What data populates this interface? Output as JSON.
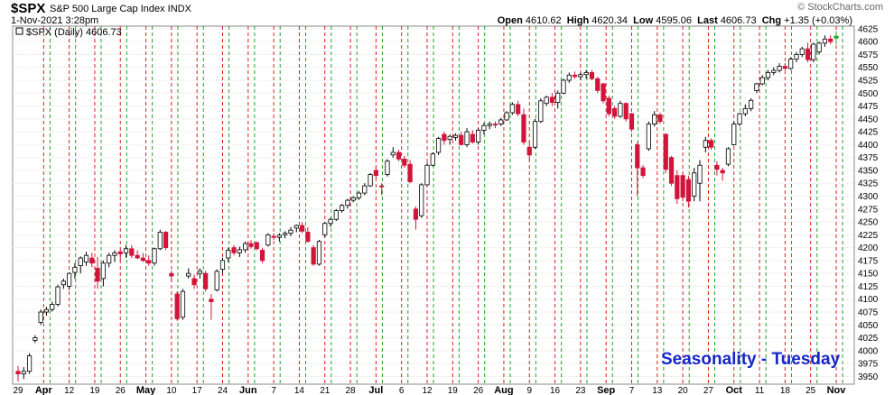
{
  "header": {
    "symbol": "$SPX",
    "description": "S&P 500 Large Cap Index  INDX",
    "datetime": "1-Nov-2021 3:28pm",
    "watermark": "© StockCharts.com",
    "open_label": "Open",
    "open_value": "4610.62",
    "high_label": "High",
    "high_value": "4620.34",
    "low_label": "Low",
    "low_value": "4595.06",
    "last_label": "Last",
    "last_value": "4606.73",
    "chg_label": "Chg",
    "chg_value": "+1.35 (+0.03%)"
  },
  "legend": {
    "text": "$SPX (Daily) 4606.73"
  },
  "annotation": {
    "text": "Seasonality - Tuesday"
  },
  "colors": {
    "up": "#ffffff",
    "down": "#d2143a",
    "tuesday_line": "#2aa02a",
    "month_line": "#d62020",
    "last_bar": "#22aa22",
    "annotation": "#1526c8"
  },
  "chart_data": {
    "type": "candlestick",
    "title": "$SPX (Daily) 4606.73",
    "ylim": [
      3935,
      4630
    ],
    "y_ticks": [
      3950,
      3975,
      4000,
      4025,
      4050,
      4075,
      4100,
      4125,
      4150,
      4175,
      4200,
      4225,
      4250,
      4275,
      4300,
      4325,
      4350,
      4375,
      4400,
      4425,
      4450,
      4475,
      4500,
      4525,
      4550,
      4575,
      4600,
      4625
    ],
    "x_tick_labels": [
      "29",
      "Apr",
      "12",
      "19",
      "26",
      "May",
      "10",
      "17",
      "24",
      "Jun",
      "7",
      "14",
      "21",
      "28",
      "Jul",
      "6",
      "12",
      "19",
      "26",
      "Aug",
      "9",
      "16",
      "23",
      "Sep",
      "7",
      "13",
      "20",
      "27",
      "Oct",
      "11",
      "18",
      "25",
      "Nov"
    ],
    "bold_labels": [
      "Apr",
      "May",
      "Jun",
      "Jul",
      "Aug",
      "Sep",
      "Oct",
      "Nov"
    ],
    "grid": true,
    "vertical_markers": "dashed red lines on first trading day of each week, dashed green lines on each Tuesday",
    "candles": [
      {
        "o": 3960,
        "h": 3970,
        "l": 3940,
        "c": 3955
      },
      {
        "o": 3955,
        "h": 3968,
        "l": 3945,
        "c": 3960
      },
      {
        "o": 3960,
        "h": 3995,
        "l": 3955,
        "c": 3990
      },
      {
        "o": 4020,
        "h": 4030,
        "l": 4015,
        "c": 4025
      },
      {
        "o": 4055,
        "h": 4080,
        "l": 4050,
        "c": 4075
      },
      {
        "o": 4075,
        "h": 4085,
        "l": 4068,
        "c": 4080
      },
      {
        "o": 4080,
        "h": 4095,
        "l": 4076,
        "c": 4090
      },
      {
        "o": 4090,
        "h": 4128,
        "l": 4086,
        "c": 4124
      },
      {
        "o": 4128,
        "h": 4140,
        "l": 4120,
        "c": 4135
      },
      {
        "o": 4125,
        "h": 4152,
        "l": 4118,
        "c": 4150
      },
      {
        "o": 4152,
        "h": 4170,
        "l": 4140,
        "c": 4162
      },
      {
        "o": 4165,
        "h": 4183,
        "l": 4150,
        "c": 4180
      },
      {
        "o": 4172,
        "h": 4192,
        "l": 4165,
        "c": 4185
      },
      {
        "o": 4180,
        "h": 4190,
        "l": 4162,
        "c": 4170
      },
      {
        "o": 4160,
        "h": 4182,
        "l": 4120,
        "c": 4135
      },
      {
        "o": 4140,
        "h": 4175,
        "l": 4125,
        "c": 4170
      },
      {
        "o": 4170,
        "h": 4190,
        "l": 4162,
        "c": 4185
      },
      {
        "o": 4185,
        "h": 4195,
        "l": 4172,
        "c": 4190
      },
      {
        "o": 4192,
        "h": 4198,
        "l": 4175,
        "c": 4188
      },
      {
        "o": 4190,
        "h": 4205,
        "l": 4180,
        "c": 4198
      },
      {
        "o": 4198,
        "h": 4205,
        "l": 4180,
        "c": 4185
      },
      {
        "o": 4185,
        "h": 4195,
        "l": 4178,
        "c": 4180
      },
      {
        "o": 4180,
        "h": 4190,
        "l": 4172,
        "c": 4175
      },
      {
        "o": 4175,
        "h": 4185,
        "l": 4165,
        "c": 4170
      },
      {
        "o": 4170,
        "h": 4200,
        "l": 4165,
        "c": 4198
      },
      {
        "o": 4198,
        "h": 4235,
        "l": 4195,
        "c": 4230
      },
      {
        "o": 4230,
        "h": 4232,
        "l": 4195,
        "c": 4200
      },
      {
        "o": 4150,
        "h": 4155,
        "l": 4135,
        "c": 4145
      },
      {
        "o": 4110,
        "h": 4115,
        "l": 4058,
        "c": 4062
      },
      {
        "o": 4065,
        "h": 4120,
        "l": 4060,
        "c": 4115
      },
      {
        "o": 4145,
        "h": 4160,
        "l": 4140,
        "c": 4150
      },
      {
        "o": 4140,
        "h": 4148,
        "l": 4120,
        "c": 4128
      },
      {
        "o": 4150,
        "h": 4160,
        "l": 4140,
        "c": 4155
      },
      {
        "o": 4150,
        "h": 4155,
        "l": 4115,
        "c": 4120
      },
      {
        "o": 4100,
        "h": 4110,
        "l": 4060,
        "c": 4095
      },
      {
        "o": 4118,
        "h": 4158,
        "l": 4115,
        "c": 4154
      },
      {
        "o": 4158,
        "h": 4180,
        "l": 4150,
        "c": 4175
      },
      {
        "o": 4180,
        "h": 4200,
        "l": 4172,
        "c": 4195
      },
      {
        "o": 4200,
        "h": 4205,
        "l": 4185,
        "c": 4190
      },
      {
        "o": 4190,
        "h": 4202,
        "l": 4182,
        "c": 4196
      },
      {
        "o": 4196,
        "h": 4212,
        "l": 4190,
        "c": 4208
      },
      {
        "o": 4208,
        "h": 4215,
        "l": 4198,
        "c": 4202
      },
      {
        "o": 4210,
        "h": 4212,
        "l": 4195,
        "c": 4198
      },
      {
        "o": 4195,
        "h": 4200,
        "l": 4170,
        "c": 4175
      },
      {
        "o": 4205,
        "h": 4228,
        "l": 4202,
        "c": 4225
      },
      {
        "o": 4222,
        "h": 4228,
        "l": 4215,
        "c": 4220
      },
      {
        "o": 4220,
        "h": 4228,
        "l": 4212,
        "c": 4224
      },
      {
        "o": 4225,
        "h": 4232,
        "l": 4218,
        "c": 4228
      },
      {
        "o": 4228,
        "h": 4240,
        "l": 4222,
        "c": 4234
      },
      {
        "o": 4238,
        "h": 4245,
        "l": 4230,
        "c": 4243
      },
      {
        "o": 4243,
        "h": 4250,
        "l": 4228,
        "c": 4232
      },
      {
        "o": 4230,
        "h": 4240,
        "l": 4210,
        "c": 4212
      },
      {
        "o": 4200,
        "h": 4205,
        "l": 4165,
        "c": 4168
      },
      {
        "o": 4168,
        "h": 4215,
        "l": 4165,
        "c": 4212
      },
      {
        "o": 4225,
        "h": 4250,
        "l": 4220,
        "c": 4247
      },
      {
        "o": 4247,
        "h": 4258,
        "l": 4240,
        "c": 4255
      },
      {
        "o": 4255,
        "h": 4275,
        "l": 4252,
        "c": 4272
      },
      {
        "o": 4272,
        "h": 4285,
        "l": 4268,
        "c": 4282
      },
      {
        "o": 4282,
        "h": 4295,
        "l": 4276,
        "c": 4292
      },
      {
        "o": 4292,
        "h": 4300,
        "l": 4288,
        "c": 4297
      },
      {
        "o": 4297,
        "h": 4310,
        "l": 4293,
        "c": 4306
      },
      {
        "o": 4306,
        "h": 4325,
        "l": 4302,
        "c": 4320
      },
      {
        "o": 4320,
        "h": 4345,
        "l": 4318,
        "c": 4342
      },
      {
        "o": 4350,
        "h": 4356,
        "l": 4335,
        "c": 4340
      },
      {
        "o": 4320,
        "h": 4325,
        "l": 4302,
        "c": 4318
      },
      {
        "o": 4342,
        "h": 4372,
        "l": 4338,
        "c": 4368
      },
      {
        "o": 4380,
        "h": 4395,
        "l": 4375,
        "c": 4385
      },
      {
        "o": 4385,
        "h": 4390,
        "l": 4368,
        "c": 4372
      },
      {
        "o": 4372,
        "h": 4378,
        "l": 4355,
        "c": 4360
      },
      {
        "o": 4362,
        "h": 4370,
        "l": 4325,
        "c": 4328
      },
      {
        "o": 4275,
        "h": 4280,
        "l": 4235,
        "c": 4255
      },
      {
        "o": 4262,
        "h": 4325,
        "l": 4258,
        "c": 4322
      },
      {
        "o": 4322,
        "h": 4365,
        "l": 4320,
        "c": 4360
      },
      {
        "o": 4360,
        "h": 4385,
        "l": 4358,
        "c": 4382
      },
      {
        "o": 4385,
        "h": 4415,
        "l": 4380,
        "c": 4412
      },
      {
        "o": 4420,
        "h": 4425,
        "l": 4400,
        "c": 4408
      },
      {
        "o": 4410,
        "h": 4420,
        "l": 4400,
        "c": 4416
      },
      {
        "o": 4414,
        "h": 4422,
        "l": 4408,
        "c": 4418
      },
      {
        "o": 4418,
        "h": 4425,
        "l": 4398,
        "c": 4400
      },
      {
        "o": 4400,
        "h": 4432,
        "l": 4395,
        "c": 4425
      },
      {
        "o": 4420,
        "h": 4428,
        "l": 4402,
        "c": 4405
      },
      {
        "o": 4405,
        "h": 4432,
        "l": 4400,
        "c": 4428
      },
      {
        "o": 4428,
        "h": 4442,
        "l": 4420,
        "c": 4437
      },
      {
        "o": 4437,
        "h": 4445,
        "l": 4430,
        "c": 4440
      },
      {
        "o": 4440,
        "h": 4445,
        "l": 4432,
        "c": 4438
      },
      {
        "o": 4440,
        "h": 4452,
        "l": 4436,
        "c": 4448
      },
      {
        "o": 4448,
        "h": 4465,
        "l": 4446,
        "c": 4462
      },
      {
        "o": 4462,
        "h": 4482,
        "l": 4458,
        "c": 4478
      },
      {
        "o": 4478,
        "h": 4485,
        "l": 4455,
        "c": 4460
      },
      {
        "o": 4458,
        "h": 4470,
        "l": 4400,
        "c": 4405
      },
      {
        "o": 4395,
        "h": 4405,
        "l": 4370,
        "c": 4380
      },
      {
        "o": 4395,
        "h": 4450,
        "l": 4392,
        "c": 4445
      },
      {
        "o": 4445,
        "h": 4490,
        "l": 4442,
        "c": 4485
      },
      {
        "o": 4480,
        "h": 4495,
        "l": 4475,
        "c": 4492
      },
      {
        "o": 4492,
        "h": 4500,
        "l": 4475,
        "c": 4482
      },
      {
        "o": 4482,
        "h": 4505,
        "l": 4470,
        "c": 4500
      },
      {
        "o": 4500,
        "h": 4528,
        "l": 4498,
        "c": 4525
      },
      {
        "o": 4525,
        "h": 4540,
        "l": 4520,
        "c": 4535
      },
      {
        "o": 4535,
        "h": 4542,
        "l": 4528,
        "c": 4532
      },
      {
        "o": 4532,
        "h": 4540,
        "l": 4525,
        "c": 4536
      },
      {
        "o": 4536,
        "h": 4545,
        "l": 4528,
        "c": 4540
      },
      {
        "o": 4540,
        "h": 4545,
        "l": 4525,
        "c": 4528
      },
      {
        "o": 4528,
        "h": 4532,
        "l": 4500,
        "c": 4505
      },
      {
        "o": 4518,
        "h": 4520,
        "l": 4480,
        "c": 4485
      },
      {
        "o": 4490,
        "h": 4495,
        "l": 4455,
        "c": 4460
      },
      {
        "o": 4470,
        "h": 4475,
        "l": 4450,
        "c": 4455
      },
      {
        "o": 4455,
        "h": 4485,
        "l": 4452,
        "c": 4480
      },
      {
        "o": 4480,
        "h": 4482,
        "l": 4445,
        "c": 4450
      },
      {
        "o": 4460,
        "h": 4462,
        "l": 4425,
        "c": 4430
      },
      {
        "o": 4400,
        "h": 4405,
        "l": 4300,
        "c": 4355
      },
      {
        "o": 4355,
        "h": 4360,
        "l": 4335,
        "c": 4340
      },
      {
        "o": 4392,
        "h": 4445,
        "l": 4388,
        "c": 4440
      },
      {
        "o": 4440,
        "h": 4465,
        "l": 4435,
        "c": 4458
      },
      {
        "o": 4458,
        "h": 4462,
        "l": 4440,
        "c": 4445
      },
      {
        "o": 4420,
        "h": 4422,
        "l": 4345,
        "c": 4352
      },
      {
        "o": 4375,
        "h": 4378,
        "l": 4320,
        "c": 4325
      },
      {
        "o": 4340,
        "h": 4350,
        "l": 4285,
        "c": 4295
      },
      {
        "o": 4340,
        "h": 4345,
        "l": 4290,
        "c": 4298
      },
      {
        "o": 4332,
        "h": 4340,
        "l": 4278,
        "c": 4290
      },
      {
        "o": 4300,
        "h": 4355,
        "l": 4290,
        "c": 4345
      },
      {
        "o": 4325,
        "h": 4370,
        "l": 4290,
        "c": 4360
      },
      {
        "o": 4395,
        "h": 4415,
        "l": 4385,
        "c": 4408
      },
      {
        "o": 4408,
        "h": 4412,
        "l": 4390,
        "c": 4395
      },
      {
        "o": 4360,
        "h": 4368,
        "l": 4340,
        "c": 4352
      },
      {
        "o": 4350,
        "h": 4355,
        "l": 4330,
        "c": 4345
      },
      {
        "o": 4362,
        "h": 4395,
        "l": 4358,
        "c": 4392
      },
      {
        "o": 4400,
        "h": 4445,
        "l": 4398,
        "c": 4440
      },
      {
        "o": 4440,
        "h": 4462,
        "l": 4436,
        "c": 4460
      },
      {
        "o": 4460,
        "h": 4478,
        "l": 4455,
        "c": 4470
      },
      {
        "o": 4470,
        "h": 4490,
        "l": 4465,
        "c": 4486
      },
      {
        "o": 4505,
        "h": 4520,
        "l": 4500,
        "c": 4518
      },
      {
        "o": 4518,
        "h": 4535,
        "l": 4515,
        "c": 4530
      },
      {
        "o": 4530,
        "h": 4545,
        "l": 4525,
        "c": 4540
      },
      {
        "o": 4540,
        "h": 4550,
        "l": 4535,
        "c": 4544
      },
      {
        "o": 4544,
        "h": 4558,
        "l": 4540,
        "c": 4552
      },
      {
        "o": 4552,
        "h": 4558,
        "l": 4545,
        "c": 4548
      },
      {
        "o": 4548,
        "h": 4570,
        "l": 4545,
        "c": 4566
      },
      {
        "o": 4566,
        "h": 4580,
        "l": 4560,
        "c": 4575
      },
      {
        "o": 4575,
        "h": 4590,
        "l": 4570,
        "c": 4586
      },
      {
        "o": 4586,
        "h": 4598,
        "l": 4560,
        "c": 4565
      },
      {
        "o": 4565,
        "h": 4598,
        "l": 4560,
        "c": 4595
      },
      {
        "o": 4580,
        "h": 4600,
        "l": 4575,
        "c": 4597
      },
      {
        "o": 4597,
        "h": 4612,
        "l": 4590,
        "c": 4605
      },
      {
        "o": 4605,
        "h": 4612,
        "l": 4595,
        "c": 4600
      },
      {
        "o": 4610.62,
        "h": 4620.34,
        "l": 4595.06,
        "c": 4606.73
      }
    ],
    "last": 4606.73
  }
}
